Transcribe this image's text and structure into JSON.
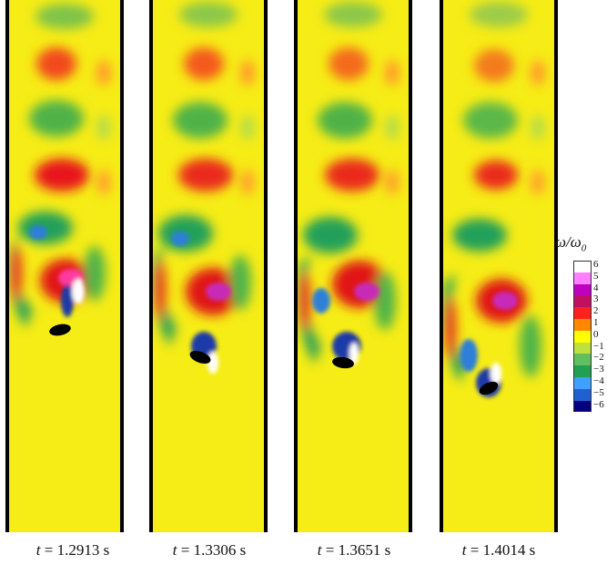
{
  "colorbar": {
    "title_symbol": "ω/ω",
    "title_subscript": "0",
    "ticks": [
      "6",
      "5",
      "4",
      "3",
      "2",
      "1",
      "0",
      "−1",
      "−2",
      "−3",
      "−4",
      "−5",
      "−6"
    ],
    "colors": [
      "#ffffff",
      "#ff80ff",
      "#c000c0",
      "#c01060",
      "#ff2020",
      "#ff8800",
      "#ffff00",
      "#c0e040",
      "#60c060",
      "#20a050",
      "#40a0ff",
      "#2060d0",
      "#000080"
    ]
  },
  "panels": [
    {
      "time_label": "t",
      "time_value": "= 1.2913 s"
    },
    {
      "time_label": "t",
      "time_value": "= 1.3306 s"
    },
    {
      "time_label": "t",
      "time_value": "= 1.3651 s"
    },
    {
      "time_label": "t",
      "time_value": "= 1.4014 s"
    }
  ]
}
